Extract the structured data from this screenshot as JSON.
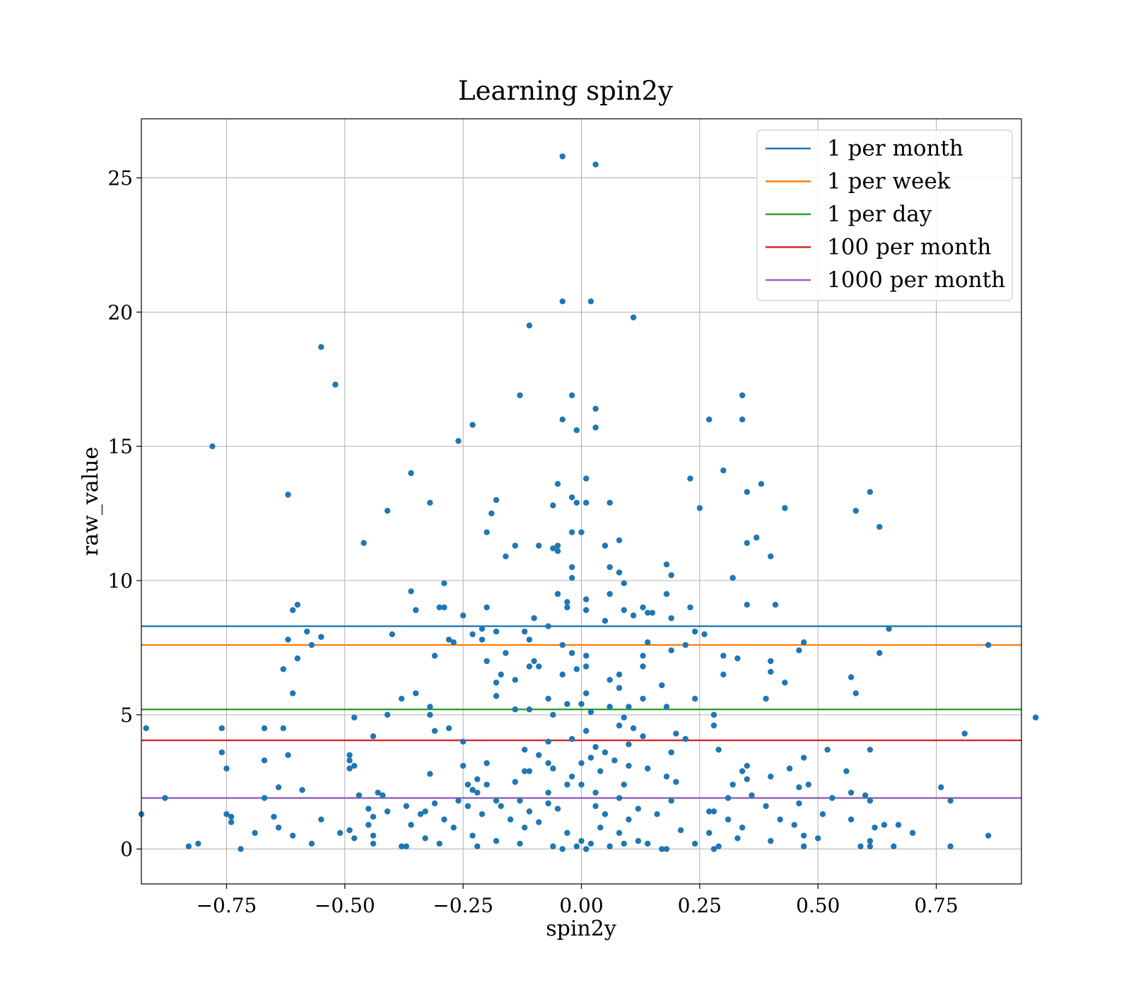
{
  "chart_data": {
    "type": "scatter",
    "title": "Learning spin2y",
    "xlabel": "spin2y",
    "ylabel": "raw_value",
    "xlim": [
      -0.93,
      0.93
    ],
    "ylim": [
      -1.3,
      27.2
    ],
    "xticks": [
      -0.75,
      -0.5,
      -0.25,
      0.0,
      0.25,
      0.5,
      0.75
    ],
    "xtick_labels": [
      "−0.75",
      "−0.50",
      "−0.25",
      "0.00",
      "0.25",
      "0.50",
      "0.75"
    ],
    "yticks": [
      0,
      5,
      10,
      15,
      20,
      25
    ],
    "ytick_labels": [
      "0",
      "5",
      "10",
      "15",
      "20",
      "25"
    ],
    "grid": true,
    "legend_position": "top-right",
    "point_color": "#1f77b4",
    "hlines": [
      {
        "name": "1 per month",
        "y": 8.3,
        "color": "#1f77b4"
      },
      {
        "name": "1 per week",
        "y": 7.6,
        "color": "#ff7f0e"
      },
      {
        "name": "1 per day",
        "y": 5.2,
        "color": "#2ca02c"
      },
      {
        "name": "100 per month",
        "y": 4.05,
        "color": "#d62728"
      },
      {
        "name": "1000 per month",
        "y": 1.9,
        "color": "#9467bd"
      }
    ],
    "points": [
      [
        -0.04,
        25.8
      ],
      [
        0.03,
        25.5
      ],
      [
        -0.04,
        20.4
      ],
      [
        0.02,
        20.4
      ],
      [
        0.11,
        19.8
      ],
      [
        -0.11,
        19.5
      ],
      [
        -0.55,
        18.7
      ],
      [
        -0.52,
        17.3
      ],
      [
        -0.78,
        15.0
      ],
      [
        -0.13,
        16.9
      ],
      [
        -0.02,
        16.9
      ],
      [
        0.03,
        16.4
      ],
      [
        0.34,
        16.9
      ],
      [
        0.34,
        16.0
      ],
      [
        0.27,
        16.0
      ],
      [
        -0.04,
        16.0
      ],
      [
        -0.23,
        15.8
      ],
      [
        -0.26,
        15.2
      ],
      [
        0.03,
        15.7
      ],
      [
        -0.01,
        15.6
      ],
      [
        -0.36,
        14.0
      ],
      [
        0.3,
        14.1
      ],
      [
        0.23,
        13.8
      ],
      [
        0.01,
        13.8
      ],
      [
        -0.05,
        13.6
      ],
      [
        0.38,
        13.6
      ],
      [
        0.35,
        13.3
      ],
      [
        0.61,
        13.3
      ],
      [
        -0.62,
        13.2
      ],
      [
        -0.32,
        12.9
      ],
      [
        -0.18,
        13.0
      ],
      [
        -0.02,
        13.1
      ],
      [
        -0.01,
        12.9
      ],
      [
        0.01,
        12.9
      ],
      [
        0.06,
        12.9
      ],
      [
        -0.06,
        12.8
      ],
      [
        0.25,
        12.7
      ],
      [
        0.43,
        12.7
      ],
      [
        -0.41,
        12.6
      ],
      [
        0.58,
        12.6
      ],
      [
        -0.19,
        12.5
      ],
      [
        0.63,
        12.0
      ],
      [
        -0.2,
        11.8
      ],
      [
        -0.02,
        11.8
      ],
      [
        0.0,
        11.8
      ],
      [
        0.37,
        11.6
      ],
      [
        0.08,
        11.5
      ],
      [
        -0.46,
        11.4
      ],
      [
        0.35,
        11.4
      ],
      [
        0.05,
        11.3
      ],
      [
        -0.14,
        11.3
      ],
      [
        -0.09,
        11.3
      ],
      [
        -0.06,
        11.2
      ],
      [
        -0.05,
        11.3
      ],
      [
        -0.05,
        11.1
      ],
      [
        -0.16,
        10.9
      ],
      [
        0.4,
        10.9
      ],
      [
        0.18,
        10.6
      ],
      [
        0.06,
        10.5
      ],
      [
        -0.02,
        10.5
      ],
      [
        0.08,
        10.3
      ],
      [
        0.19,
        10.2
      ],
      [
        -0.02,
        10.1
      ],
      [
        0.32,
        10.1
      ],
      [
        -0.29,
        9.9
      ],
      [
        0.09,
        9.9
      ],
      [
        -0.36,
        9.6
      ],
      [
        -0.05,
        9.5
      ],
      [
        0.06,
        9.5
      ],
      [
        0.18,
        9.5
      ],
      [
        -0.03,
        9.2
      ],
      [
        0.01,
        9.3
      ],
      [
        0.35,
        9.1
      ],
      [
        0.41,
        9.1
      ],
      [
        -0.3,
        9.0
      ],
      [
        -0.29,
        9.0
      ],
      [
        -0.2,
        9.0
      ],
      [
        -0.03,
        9.0
      ],
      [
        0.01,
        8.9
      ],
      [
        0.09,
        8.9
      ],
      [
        0.13,
        9.0
      ],
      [
        0.23,
        9.0
      ],
      [
        -0.6,
        9.1
      ],
      [
        -0.61,
        8.9
      ],
      [
        -0.35,
        8.9
      ],
      [
        0.14,
        8.8
      ],
      [
        0.15,
        8.8
      ],
      [
        -0.25,
        8.7
      ],
      [
        -0.1,
        8.6
      ],
      [
        0.11,
        8.7
      ],
      [
        0.19,
        8.6
      ],
      [
        0.05,
        8.5
      ],
      [
        -0.07,
        8.3
      ],
      [
        -0.21,
        8.2
      ],
      [
        0.65,
        8.2
      ],
      [
        -0.58,
        8.1
      ],
      [
        -0.4,
        8.0
      ],
      [
        -0.23,
        8.0
      ],
      [
        -0.18,
        8.1
      ],
      [
        -0.12,
        8.1
      ],
      [
        0.24,
        8.1
      ],
      [
        0.26,
        8.0
      ],
      [
        -0.55,
        7.9
      ],
      [
        -0.21,
        7.8
      ],
      [
        -0.62,
        7.8
      ],
      [
        -0.28,
        7.8
      ],
      [
        -0.27,
        7.7
      ],
      [
        -0.11,
        7.8
      ],
      [
        0.14,
        7.7
      ],
      [
        0.47,
        7.7
      ],
      [
        -0.57,
        7.6
      ],
      [
        0.22,
        7.6
      ],
      [
        0.86,
        7.6
      ],
      [
        -0.04,
        7.6
      ],
      [
        -0.16,
        7.3
      ],
      [
        -0.31,
        7.2
      ],
      [
        -0.02,
        7.3
      ],
      [
        0.01,
        7.2
      ],
      [
        0.13,
        7.2
      ],
      [
        0.3,
        7.2
      ],
      [
        0.33,
        7.1
      ],
      [
        0.63,
        7.3
      ],
      [
        0.19,
        7.4
      ],
      [
        0.46,
        7.4
      ],
      [
        -0.6,
        7.1
      ],
      [
        -0.2,
        7.0
      ],
      [
        -0.1,
        7.0
      ],
      [
        -0.11,
        6.8
      ],
      [
        -0.09,
        6.8
      ],
      [
        0.13,
        6.8
      ],
      [
        0.4,
        7.0
      ],
      [
        -0.63,
        6.7
      ],
      [
        -0.01,
        6.7
      ],
      [
        0.01,
        6.8
      ],
      [
        -0.17,
        6.5
      ],
      [
        -0.04,
        6.5
      ],
      [
        0.08,
        6.5
      ],
      [
        0.3,
        6.5
      ],
      [
        0.4,
        6.6
      ],
      [
        0.57,
        6.4
      ],
      [
        -0.18,
        6.2
      ],
      [
        -0.14,
        6.3
      ],
      [
        0.06,
        6.3
      ],
      [
        0.17,
        6.1
      ],
      [
        0.43,
        6.2
      ],
      [
        0.08,
        6.0
      ],
      [
        -0.61,
        5.8
      ],
      [
        -0.35,
        5.8
      ],
      [
        -0.38,
        5.6
      ],
      [
        -0.07,
        5.6
      ],
      [
        0.01,
        5.8
      ],
      [
        0.13,
        5.6
      ],
      [
        0.24,
        5.6
      ],
      [
        0.39,
        5.6
      ],
      [
        0.58,
        5.8
      ],
      [
        -0.18,
        5.7
      ],
      [
        -0.32,
        5.3
      ],
      [
        -0.03,
        5.4
      ],
      [
        0.0,
        5.4
      ],
      [
        0.06,
        5.3
      ],
      [
        0.1,
        5.3
      ],
      [
        0.18,
        5.3
      ],
      [
        -0.14,
        5.2
      ],
      [
        -0.11,
        5.2
      ],
      [
        -0.32,
        5.0
      ],
      [
        -0.06,
        5.0
      ],
      [
        0.02,
        5.1
      ],
      [
        0.09,
        4.9
      ],
      [
        0.28,
        5.0
      ],
      [
        -0.41,
        5.0
      ],
      [
        -0.48,
        4.9
      ],
      [
        -0.92,
        4.5
      ],
      [
        -0.76,
        4.5
      ],
      [
        -0.67,
        4.5
      ],
      [
        -0.63,
        4.5
      ],
      [
        -0.28,
        4.5
      ],
      [
        -0.31,
        4.4
      ],
      [
        0.01,
        4.4
      ],
      [
        0.08,
        4.6
      ],
      [
        0.11,
        4.5
      ],
      [
        0.2,
        4.3
      ],
      [
        0.28,
        4.6
      ],
      [
        0.81,
        4.3
      ],
      [
        0.96,
        4.9
      ],
      [
        -0.44,
        4.2
      ],
      [
        -0.02,
        4.1
      ],
      [
        0.13,
        4.2
      ],
      [
        -0.25,
        4.0
      ],
      [
        -0.07,
        4.0
      ],
      [
        0.03,
        3.8
      ],
      [
        0.1,
        3.9
      ],
      [
        0.22,
        4.1
      ],
      [
        -0.76,
        3.6
      ],
      [
        -0.62,
        3.5
      ],
      [
        -0.49,
        3.5
      ],
      [
        -0.12,
        3.7
      ],
      [
        -0.09,
        3.5
      ],
      [
        0.05,
        3.6
      ],
      [
        0.19,
        3.6
      ],
      [
        0.29,
        3.7
      ],
      [
        0.52,
        3.7
      ],
      [
        0.61,
        3.7
      ],
      [
        -0.67,
        3.3
      ],
      [
        -0.49,
        3.3
      ],
      [
        -0.48,
        3.1
      ],
      [
        -0.2,
        3.2
      ],
      [
        -0.07,
        3.2
      ],
      [
        0.0,
        3.2
      ],
      [
        0.02,
        3.4
      ],
      [
        0.07,
        3.3
      ],
      [
        0.1,
        3.1
      ],
      [
        0.35,
        3.1
      ],
      [
        0.47,
        3.4
      ],
      [
        -0.75,
        3.0
      ],
      [
        -0.49,
        3.0
      ],
      [
        -0.25,
        3.1
      ],
      [
        -0.12,
        2.9
      ],
      [
        -0.11,
        2.9
      ],
      [
        -0.06,
        3.0
      ],
      [
        0.04,
        2.9
      ],
      [
        0.14,
        3.0
      ],
      [
        0.34,
        2.9
      ],
      [
        0.44,
        3.0
      ],
      [
        -0.32,
        2.8
      ],
      [
        -0.02,
        2.7
      ],
      [
        0.18,
        2.7
      ],
      [
        0.35,
        2.6
      ],
      [
        0.4,
        2.7
      ],
      [
        0.56,
        2.9
      ],
      [
        -0.22,
        2.6
      ],
      [
        -0.14,
        2.5
      ],
      [
        0.2,
        2.5
      ],
      [
        0.32,
        2.4
      ],
      [
        -0.64,
        2.3
      ],
      [
        -0.59,
        2.2
      ],
      [
        -0.24,
        2.4
      ],
      [
        -0.23,
        2.2
      ],
      [
        -0.2,
        2.4
      ],
      [
        -0.03,
        2.4
      ],
      [
        0.0,
        2.4
      ],
      [
        0.09,
        2.4
      ],
      [
        0.46,
        2.3
      ],
      [
        0.48,
        2.4
      ],
      [
        0.76,
        2.3
      ],
      [
        -0.43,
        2.1
      ],
      [
        -0.42,
        2.0
      ],
      [
        -0.47,
        2.0
      ],
      [
        -0.22,
        2.1
      ],
      [
        -0.07,
        2.1
      ],
      [
        0.03,
        2.1
      ],
      [
        0.36,
        2.0
      ],
      [
        0.57,
        2.1
      ],
      [
        0.6,
        2.0
      ],
      [
        -0.88,
        1.9
      ],
      [
        -0.67,
        1.9
      ],
      [
        -0.26,
        1.8
      ],
      [
        -0.18,
        1.8
      ],
      [
        -0.13,
        1.8
      ],
      [
        -0.07,
        1.7
      ],
      [
        0.08,
        1.9
      ],
      [
        0.19,
        1.8
      ],
      [
        0.31,
        1.9
      ],
      [
        0.46,
        1.7
      ],
      [
        0.53,
        1.9
      ],
      [
        0.61,
        1.8
      ],
      [
        0.78,
        1.8
      ],
      [
        -0.37,
        1.6
      ],
      [
        -0.31,
        1.7
      ],
      [
        -0.24,
        1.6
      ],
      [
        -0.17,
        1.6
      ],
      [
        -0.05,
        1.5
      ],
      [
        0.03,
        1.6
      ],
      [
        0.12,
        1.5
      ],
      [
        0.39,
        1.6
      ],
      [
        -0.41,
        1.4
      ],
      [
        -0.33,
        1.4
      ],
      [
        -0.45,
        1.5
      ],
      [
        -0.21,
        1.3
      ],
      [
        -0.11,
        1.4
      ],
      [
        0.05,
        1.3
      ],
      [
        0.16,
        1.3
      ],
      [
        0.27,
        1.4
      ],
      [
        0.28,
        1.4
      ],
      [
        0.51,
        1.3
      ],
      [
        -0.93,
        1.3
      ],
      [
        -0.75,
        1.3
      ],
      [
        -0.74,
        1.2
      ],
      [
        -0.65,
        1.2
      ],
      [
        -0.55,
        1.1
      ],
      [
        -0.44,
        1.2
      ],
      [
        -0.34,
        1.3
      ],
      [
        -0.29,
        1.1
      ],
      [
        -0.15,
        1.1
      ],
      [
        -0.09,
        1.0
      ],
      [
        0.1,
        1.1
      ],
      [
        0.31,
        1.1
      ],
      [
        0.42,
        1.1
      ],
      [
        0.57,
        1.1
      ],
      [
        0.64,
        0.9
      ],
      [
        0.67,
        0.9
      ],
      [
        -0.74,
        1.0
      ],
      [
        -0.64,
        0.8
      ],
      [
        -0.49,
        0.7
      ],
      [
        -0.45,
        0.9
      ],
      [
        -0.36,
        0.9
      ],
      [
        -0.27,
        0.8
      ],
      [
        -0.12,
        0.8
      ],
      [
        0.04,
        0.8
      ],
      [
        0.21,
        0.7
      ],
      [
        0.34,
        0.8
      ],
      [
        0.45,
        0.9
      ],
      [
        0.62,
        0.8
      ],
      [
        -0.69,
        0.6
      ],
      [
        -0.51,
        0.6
      ],
      [
        -0.44,
        0.5
      ],
      [
        -0.23,
        0.5
      ],
      [
        -0.03,
        0.6
      ],
      [
        0.08,
        0.6
      ],
      [
        0.27,
        0.6
      ],
      [
        0.47,
        0.5
      ],
      [
        0.7,
        0.6
      ],
      [
        0.86,
        0.5
      ],
      [
        -0.61,
        0.5
      ],
      [
        -0.48,
        0.4
      ],
      [
        -0.33,
        0.4
      ],
      [
        -0.18,
        0.3
      ],
      [
        0.0,
        0.3
      ],
      [
        0.12,
        0.3
      ],
      [
        0.33,
        0.4
      ],
      [
        0.5,
        0.4
      ],
      [
        -0.57,
        0.2
      ],
      [
        -0.44,
        0.2
      ],
      [
        -0.3,
        0.2
      ],
      [
        -0.13,
        0.2
      ],
      [
        -0.06,
        0.1
      ],
      [
        0.02,
        0.2
      ],
      [
        0.14,
        0.2
      ],
      [
        0.24,
        0.2
      ],
      [
        0.4,
        0.3
      ],
      [
        0.61,
        0.3
      ],
      [
        -0.83,
        0.1
      ],
      [
        -0.81,
        0.2
      ],
      [
        -0.72,
        0.0
      ],
      [
        -0.38,
        0.1
      ],
      [
        -0.37,
        0.1
      ],
      [
        -0.22,
        0.1
      ],
      [
        -0.01,
        0.1
      ],
      [
        0.06,
        0.1
      ],
      [
        0.17,
        0.0
      ],
      [
        0.18,
        0.0
      ],
      [
        0.28,
        0.0
      ],
      [
        0.47,
        0.1
      ],
      [
        0.59,
        0.1
      ],
      [
        0.61,
        0.1
      ],
      [
        0.66,
        0.1
      ],
      [
        0.78,
        0.1
      ],
      [
        -0.04,
        0.0
      ],
      [
        0.01,
        0.0
      ],
      [
        0.09,
        0.2
      ],
      [
        0.29,
        0.1
      ]
    ]
  }
}
